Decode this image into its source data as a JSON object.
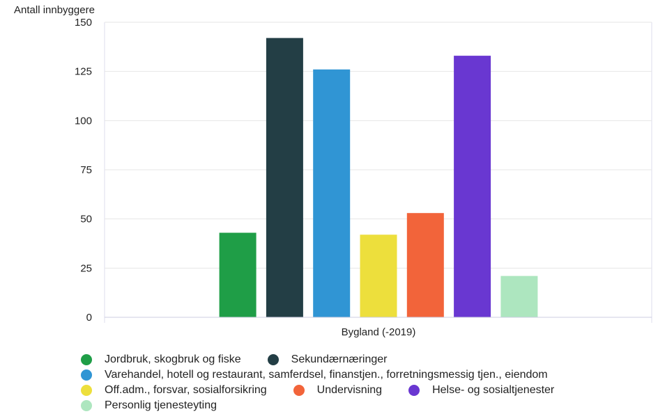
{
  "chart_data": {
    "type": "bar",
    "ylabel": "Antall innbyggere",
    "xlabel": "",
    "categories": [
      "Bygland (-2019)"
    ],
    "ylim": [
      0,
      150
    ],
    "yticks": [
      "0",
      "25",
      "50",
      "75",
      "100",
      "125",
      "150"
    ],
    "yticks_values": [
      0,
      25,
      50,
      75,
      100,
      125,
      150
    ],
    "grid": true,
    "legend_position": "bottom",
    "series": [
      {
        "name": "Jordbruk, skogbruk og fiske",
        "values": [
          43
        ],
        "color": "#1f9e47"
      },
      {
        "name": "Sekundærnæringer",
        "values": [
          142
        ],
        "color": "#233e45"
      },
      {
        "name": "Varehandel, hotell og restaurant, samferdsel, finanstjen., forretningsmessig tjen., eiendom",
        "values": [
          126
        ],
        "color": "#3095d4"
      },
      {
        "name": "Off.adm., forsvar, sosialforsikring",
        "values": [
          42
        ],
        "color": "#eddf3c"
      },
      {
        "name": "Undervisning",
        "values": [
          53
        ],
        "color": "#f2643a"
      },
      {
        "name": "Helse- og sosialtjenester",
        "values": [
          133
        ],
        "color": "#6937d1"
      },
      {
        "name": "Personlig tjenesteyting",
        "values": [
          21
        ],
        "color": "#ade6bf"
      }
    ]
  }
}
